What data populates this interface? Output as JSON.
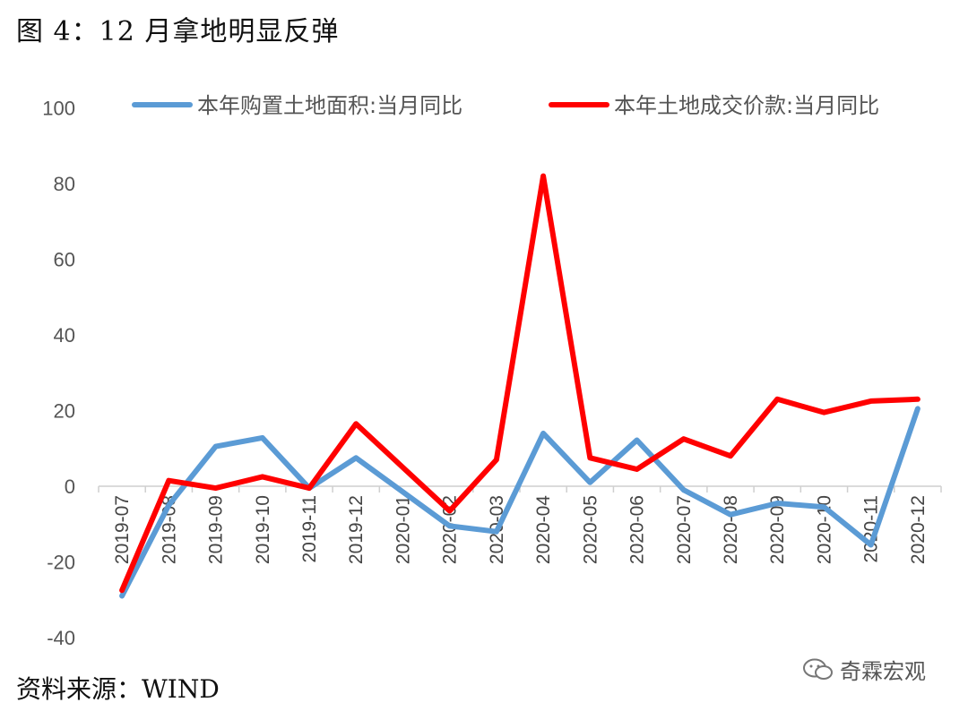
{
  "figure": {
    "title": "图 4：12 月拿地明显反弹",
    "source": "资料来源：WIND",
    "watermark": "奇霖宏观"
  },
  "chart_data": {
    "type": "line",
    "categories": [
      "2019-07",
      "2019-08",
      "2019-09",
      "2019-10",
      "2019-11",
      "2019-12",
      "2020-01",
      "2020-02",
      "2020-03",
      "2020-04",
      "2020-05",
      "2020-06",
      "2020-07",
      "2020-08",
      "2020-09",
      "2020-10",
      "2020-11",
      "2020-12"
    ],
    "ylim": [
      -40,
      100
    ],
    "yticks": [
      -40,
      -20,
      0,
      20,
      40,
      60,
      80,
      100
    ],
    "grid": false,
    "legend_position": "top",
    "series": [
      {
        "name": "本年购置土地面积:当月同比",
        "color": "#5B9BD5",
        "values": [
          -29,
          -5,
          10.5,
          12.8,
          -0.5,
          7.5,
          -1.5,
          -10.5,
          -12,
          14,
          1,
          12.2,
          -1,
          -7.5,
          -4.5,
          -5.5,
          -15.5,
          20.5
        ]
      },
      {
        "name": "本年土地成交价款:当月同比",
        "color": "#FF0000",
        "values": [
          -27.5,
          1.5,
          -0.5,
          2.5,
          -0.5,
          16.5,
          5,
          -6.5,
          7,
          82,
          7.5,
          4.5,
          12.5,
          8,
          23,
          19.5,
          22.5,
          23
        ]
      }
    ]
  }
}
